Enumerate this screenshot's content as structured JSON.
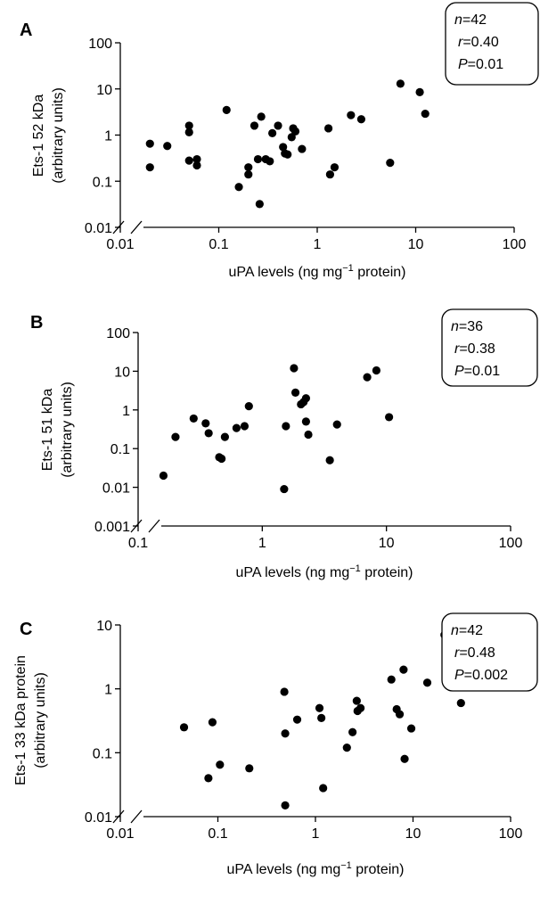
{
  "chart_data": [
    {
      "type": "scatter",
      "panel_label": "A",
      "xlabel": "uPA levels (ng mg−1 protein)",
      "ylabel_line1": "Ets-1 52 kDa",
      "ylabel_line2": "(arbitrary units)",
      "x_scale": "log",
      "y_scale": "log",
      "xlim": [
        0.01,
        100
      ],
      "ylim": [
        0.01,
        100
      ],
      "x_ticks": [
        "0.01",
        "0.1",
        "1",
        "10",
        "100"
      ],
      "y_ticks": [
        "0.01",
        "0.1",
        "1",
        "10",
        "100"
      ],
      "grid": false,
      "legend": "none",
      "stats": {
        "n": "=42",
        "r": "=0.40",
        "P": "=0.01"
      },
      "points": [
        [
          0.02,
          0.65
        ],
        [
          0.02,
          0.2
        ],
        [
          0.03,
          0.58
        ],
        [
          0.05,
          1.6
        ],
        [
          0.05,
          1.15
        ],
        [
          0.05,
          0.28
        ],
        [
          0.06,
          0.3
        ],
        [
          0.06,
          0.22
        ],
        [
          0.12,
          3.5
        ],
        [
          0.16,
          0.075
        ],
        [
          0.2,
          0.2
        ],
        [
          0.2,
          0.14
        ],
        [
          0.23,
          1.6
        ],
        [
          0.25,
          0.3
        ],
        [
          0.26,
          0.032
        ],
        [
          0.27,
          2.5
        ],
        [
          0.3,
          0.3
        ],
        [
          0.33,
          0.27
        ],
        [
          0.35,
          1.1
        ],
        [
          0.4,
          1.6
        ],
        [
          0.45,
          0.55
        ],
        [
          0.47,
          0.4
        ],
        [
          0.5,
          0.38
        ],
        [
          0.55,
          0.9
        ],
        [
          0.57,
          1.4
        ],
        [
          0.6,
          1.2
        ],
        [
          0.7,
          0.5
        ],
        [
          1.3,
          1.4
        ],
        [
          1.35,
          0.14
        ],
        [
          1.5,
          0.2
        ],
        [
          2.2,
          2.7
        ],
        [
          2.8,
          2.2
        ],
        [
          5.5,
          0.25
        ],
        [
          7.0,
          13
        ],
        [
          11,
          8.5
        ],
        [
          12.5,
          2.9
        ]
      ]
    },
    {
      "type": "scatter",
      "panel_label": "B",
      "xlabel": "uPA levels (ng mg−1 protein)",
      "ylabel_line1": "Ets-1 51 kDa",
      "ylabel_line2": "(arbitrary units)",
      "x_scale": "log",
      "y_scale": "log",
      "xlim": [
        0.1,
        100
      ],
      "ylim": [
        0.001,
        100
      ],
      "x_ticks": [
        "0.1",
        "1",
        "10",
        "100"
      ],
      "y_ticks": [
        "0.001",
        "0.01",
        "0.1",
        "1",
        "10",
        "100"
      ],
      "grid": false,
      "legend": "none",
      "stats": {
        "n": "=36",
        "r": "=0.38",
        "P": "=0.01"
      },
      "points": [
        [
          0.16,
          0.02
        ],
        [
          0.2,
          0.2
        ],
        [
          0.28,
          0.6
        ],
        [
          0.35,
          0.45
        ],
        [
          0.37,
          0.25
        ],
        [
          0.45,
          0.06
        ],
        [
          0.47,
          0.055
        ],
        [
          0.5,
          0.2
        ],
        [
          0.62,
          0.34
        ],
        [
          0.72,
          0.38
        ],
        [
          0.78,
          1.25
        ],
        [
          1.5,
          0.009
        ],
        [
          1.55,
          0.38
        ],
        [
          1.8,
          12
        ],
        [
          1.85,
          2.8
        ],
        [
          2.05,
          1.4
        ],
        [
          2.15,
          1.6
        ],
        [
          2.25,
          2.0
        ],
        [
          2.25,
          0.5
        ],
        [
          2.35,
          0.23
        ],
        [
          3.5,
          0.05
        ],
        [
          4.0,
          0.42
        ],
        [
          7.0,
          7.0
        ],
        [
          8.3,
          10.5
        ],
        [
          10.5,
          0.65
        ]
      ]
    },
    {
      "type": "scatter",
      "panel_label": "C",
      "xlabel": "uPA levels (ng mg−1 protein)",
      "ylabel_line1": "Ets-1 33 kDa protein",
      "ylabel_line2": "(arbitrary units)",
      "x_scale": "log",
      "y_scale": "log",
      "xlim": [
        0.01,
        100
      ],
      "ylim": [
        0.01,
        10
      ],
      "x_ticks": [
        "0.01",
        "0.1",
        "1",
        "10",
        "100"
      ],
      "y_ticks": [
        "0.01",
        "0.1",
        "1",
        "10"
      ],
      "grid": false,
      "legend": "none",
      "stats": {
        "n": "=42",
        "r": "=0.48",
        "P": "=0.002"
      },
      "points": [
        [
          0.045,
          0.25
        ],
        [
          0.08,
          0.04
        ],
        [
          0.088,
          0.3
        ],
        [
          0.105,
          0.065
        ],
        [
          0.21,
          0.057
        ],
        [
          0.48,
          0.9
        ],
        [
          0.49,
          0.2
        ],
        [
          0.49,
          0.015
        ],
        [
          0.65,
          0.33
        ],
        [
          1.1,
          0.5
        ],
        [
          1.15,
          0.35
        ],
        [
          1.2,
          0.028
        ],
        [
          2.1,
          0.12
        ],
        [
          2.4,
          0.21
        ],
        [
          2.65,
          0.65
        ],
        [
          2.7,
          0.45
        ],
        [
          2.9,
          0.5
        ],
        [
          6.0,
          1.4
        ],
        [
          6.8,
          0.48
        ],
        [
          7.3,
          0.4
        ],
        [
          8.0,
          2.0
        ],
        [
          8.2,
          0.08
        ],
        [
          9.6,
          0.24
        ],
        [
          14,
          1.25
        ],
        [
          21,
          7.0
        ],
        [
          31,
          0.6
        ]
      ]
    }
  ]
}
